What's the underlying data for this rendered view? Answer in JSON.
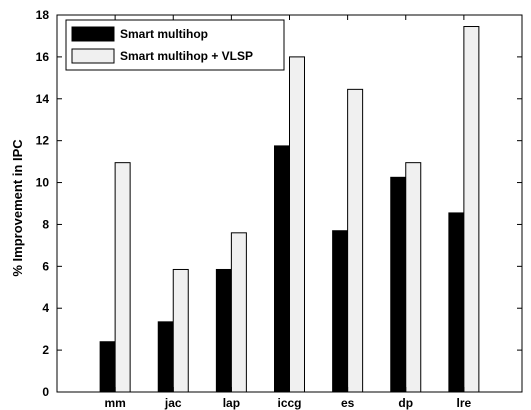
{
  "chart_data": {
    "type": "bar",
    "categories": [
      "mm",
      "jac",
      "lap",
      "iccg",
      "es",
      "dp",
      "lre"
    ],
    "series": [
      {
        "name": "Smart multihop",
        "color": "#000000",
        "values": [
          2.4,
          3.35,
          5.85,
          11.75,
          7.7,
          10.25,
          8.55
        ]
      },
      {
        "name": "Smart multihop + VLSP",
        "color": "#f0f0f0",
        "values": [
          10.95,
          5.85,
          7.6,
          16.0,
          14.45,
          10.95,
          17.45
        ]
      }
    ],
    "title": "",
    "xlabel": "",
    "ylabel": "% Improvement in IPC",
    "ylim": [
      0,
      18
    ],
    "yticks": [
      0,
      2,
      4,
      6,
      8,
      10,
      12,
      14,
      16,
      18
    ],
    "grid": false,
    "legend_position": "top-left"
  }
}
